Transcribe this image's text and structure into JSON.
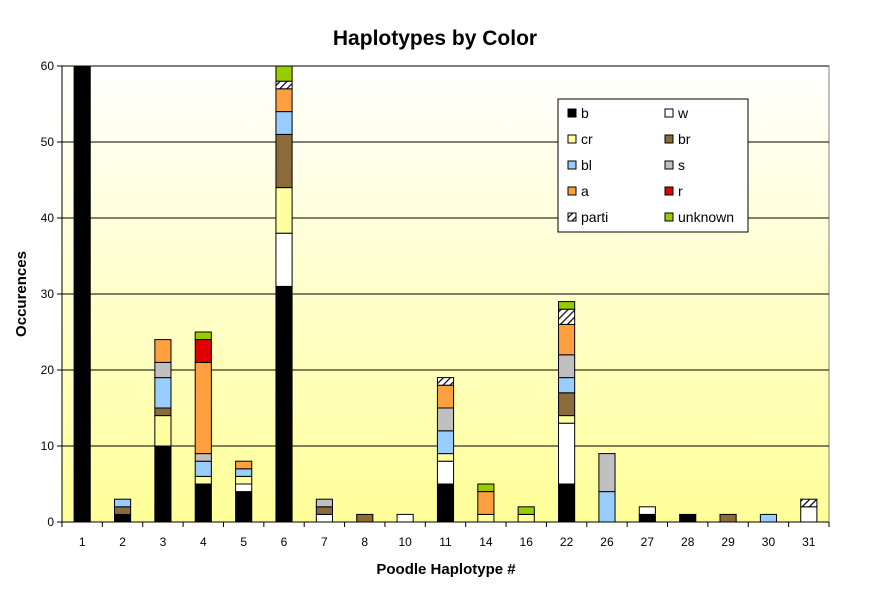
{
  "chart_data": {
    "type": "bar",
    "stacked": true,
    "title": "Haplotypes by Color",
    "xlabel": "Poodle Haplotype #",
    "ylabel": "Occurences",
    "ylim": [
      0,
      60
    ],
    "yticks": [
      0,
      10,
      20,
      30,
      40,
      50,
      60
    ],
    "grid": true,
    "legend_position": "top-right",
    "categories": [
      "1",
      "2",
      "3",
      "4",
      "5",
      "6",
      "7",
      "8",
      "10",
      "11",
      "14",
      "16",
      "22",
      "26",
      "27",
      "28",
      "29",
      "30",
      "31"
    ],
    "series": [
      {
        "name": "b",
        "color": "#000000",
        "pattern": "solid",
        "values": [
          60,
          1,
          10,
          5,
          4,
          31,
          0,
          0,
          0,
          5,
          0,
          0,
          5,
          0,
          1,
          1,
          0,
          0,
          0
        ]
      },
      {
        "name": "w",
        "color": "#ffffff",
        "pattern": "solid",
        "values": [
          0,
          0,
          0,
          0,
          1,
          7,
          1,
          0,
          1,
          3,
          0,
          0,
          8,
          0,
          1,
          0,
          0,
          0,
          2
        ]
      },
      {
        "name": "cr",
        "color": "#ffffa0",
        "pattern": "solid",
        "values": [
          0,
          0,
          4,
          1,
          1,
          6,
          0,
          0,
          0,
          1,
          1,
          1,
          1,
          0,
          0,
          0,
          0,
          0,
          0
        ]
      },
      {
        "name": "br",
        "color": "#8b6b3a",
        "pattern": "solid",
        "values": [
          0,
          1,
          1,
          0,
          0,
          7,
          1,
          1,
          0,
          0,
          0,
          0,
          3,
          0,
          0,
          0,
          1,
          0,
          0
        ]
      },
      {
        "name": "bl",
        "color": "#99ccff",
        "pattern": "solid",
        "values": [
          0,
          1,
          4,
          2,
          1,
          3,
          0,
          0,
          0,
          3,
          0,
          0,
          2,
          4,
          0,
          0,
          0,
          1,
          0
        ]
      },
      {
        "name": "s",
        "color": "#c0c0c0",
        "pattern": "solid",
        "values": [
          0,
          0,
          2,
          1,
          0,
          0,
          1,
          0,
          0,
          3,
          0,
          0,
          3,
          5,
          0,
          0,
          0,
          0,
          0
        ]
      },
      {
        "name": "a",
        "color": "#ffa040",
        "pattern": "solid",
        "values": [
          0,
          0,
          3,
          12,
          1,
          3,
          0,
          0,
          0,
          3,
          3,
          0,
          4,
          0,
          0,
          0,
          0,
          0,
          0
        ]
      },
      {
        "name": "r",
        "color": "#e00000",
        "pattern": "solid",
        "values": [
          0,
          0,
          0,
          3,
          0,
          0,
          0,
          0,
          0,
          0,
          0,
          0,
          0,
          0,
          0,
          0,
          0,
          0,
          0
        ]
      },
      {
        "name": "parti",
        "color": "#000000",
        "pattern": "hatch",
        "values": [
          0,
          0,
          0,
          0,
          0,
          1,
          0,
          0,
          0,
          1,
          0,
          0,
          2,
          0,
          0,
          0,
          0,
          0,
          1
        ]
      },
      {
        "name": "unknown",
        "color": "#99cc00",
        "pattern": "solid",
        "values": [
          0,
          0,
          0,
          1,
          0,
          2,
          0,
          0,
          0,
          0,
          1,
          1,
          1,
          0,
          0,
          0,
          0,
          0,
          0
        ]
      }
    ],
    "plot_background": "gradient white-to-yellow",
    "gradient_colors": [
      "#ffffff",
      "#ffff99"
    ]
  }
}
